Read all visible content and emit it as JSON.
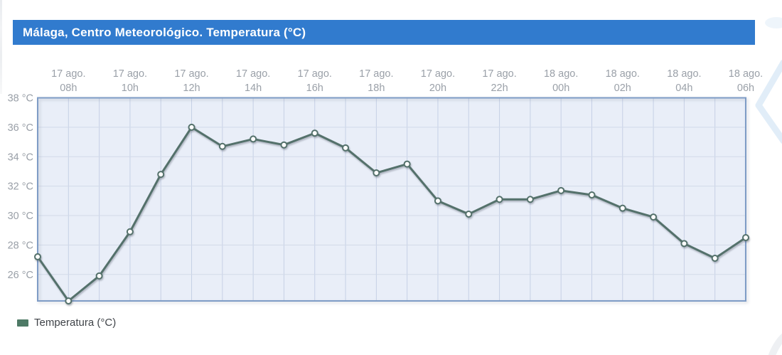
{
  "header": {
    "title": "Málaga, Centro Meteorológico. Temperatura (°C)",
    "bg_color": "#317bce",
    "text_color": "#ffffff"
  },
  "legend": {
    "label": "Temperatura (°C)",
    "swatch_color": "#4e7a66",
    "position": "bottom-left"
  },
  "chart_data": {
    "type": "line",
    "title": "Málaga, Centro Meteorológico. Temperatura (°C)",
    "xlabel": "",
    "ylabel": "",
    "ylim": [
      24.2,
      38
    ],
    "y_ticks": [
      38,
      36,
      34,
      32,
      30,
      28,
      26
    ],
    "y_tick_suffix": " °C",
    "x_tick_labels": [
      {
        "day": "17 ago.",
        "hour": "08h"
      },
      {
        "day": "17 ago.",
        "hour": "10h"
      },
      {
        "day": "17 ago.",
        "hour": "12h"
      },
      {
        "day": "17 ago.",
        "hour": "14h"
      },
      {
        "day": "17 ago.",
        "hour": "16h"
      },
      {
        "day": "17 ago.",
        "hour": "18h"
      },
      {
        "day": "17 ago.",
        "hour": "20h"
      },
      {
        "day": "17 ago.",
        "hour": "22h"
      },
      {
        "day": "18 ago.",
        "hour": "00h"
      },
      {
        "day": "18 ago.",
        "hour": "02h"
      },
      {
        "day": "18 ago.",
        "hour": "04h"
      },
      {
        "day": "18 ago.",
        "hour": "06h"
      }
    ],
    "series": [
      {
        "name": "Temperatura (°C)",
        "color": "#54716b",
        "marker": {
          "fill": "#ffffff",
          "stroke": "#54716b"
        },
        "points": [
          {
            "day": "17 ago.",
            "hour": "07h",
            "temp": 27.2
          },
          {
            "day": "17 ago.",
            "hour": "08h",
            "temp": 24.2
          },
          {
            "day": "17 ago.",
            "hour": "09h",
            "temp": 25.9
          },
          {
            "day": "17 ago.",
            "hour": "10h",
            "temp": 28.9
          },
          {
            "day": "17 ago.",
            "hour": "11h",
            "temp": 32.8
          },
          {
            "day": "17 ago.",
            "hour": "12h",
            "temp": 36.0
          },
          {
            "day": "17 ago.",
            "hour": "13h",
            "temp": 34.7
          },
          {
            "day": "17 ago.",
            "hour": "14h",
            "temp": 35.2
          },
          {
            "day": "17 ago.",
            "hour": "15h",
            "temp": 34.8
          },
          {
            "day": "17 ago.",
            "hour": "16h",
            "temp": 35.6
          },
          {
            "day": "17 ago.",
            "hour": "17h",
            "temp": 34.6
          },
          {
            "day": "17 ago.",
            "hour": "18h",
            "temp": 32.9
          },
          {
            "day": "17 ago.",
            "hour": "19h",
            "temp": 33.5
          },
          {
            "day": "17 ago.",
            "hour": "20h",
            "temp": 31.0
          },
          {
            "day": "17 ago.",
            "hour": "21h",
            "temp": 30.1
          },
          {
            "day": "17 ago.",
            "hour": "22h",
            "temp": 31.1
          },
          {
            "day": "17 ago.",
            "hour": "23h",
            "temp": 31.1
          },
          {
            "day": "18 ago.",
            "hour": "00h",
            "temp": 31.7
          },
          {
            "day": "18 ago.",
            "hour": "01h",
            "temp": 31.4
          },
          {
            "day": "18 ago.",
            "hour": "02h",
            "temp": 30.5
          },
          {
            "day": "18 ago.",
            "hour": "03h",
            "temp": 29.9
          },
          {
            "day": "18 ago.",
            "hour": "04h",
            "temp": 28.1
          },
          {
            "day": "18 ago.",
            "hour": "05h",
            "temp": 27.1
          },
          {
            "day": "18 ago.",
            "hour": "06h",
            "temp": 28.5
          }
        ]
      }
    ],
    "grid": true,
    "legend_position": "bottom-left",
    "colors": {
      "plot_bg": "#e9eef8",
      "grid_vertical": "#c6d0e5",
      "grid_horizontal": "#d2dae9",
      "plot_border": "#7e9cc6",
      "tick_label": "#9aa0a8",
      "watermark": "#d9e9f6"
    }
  }
}
